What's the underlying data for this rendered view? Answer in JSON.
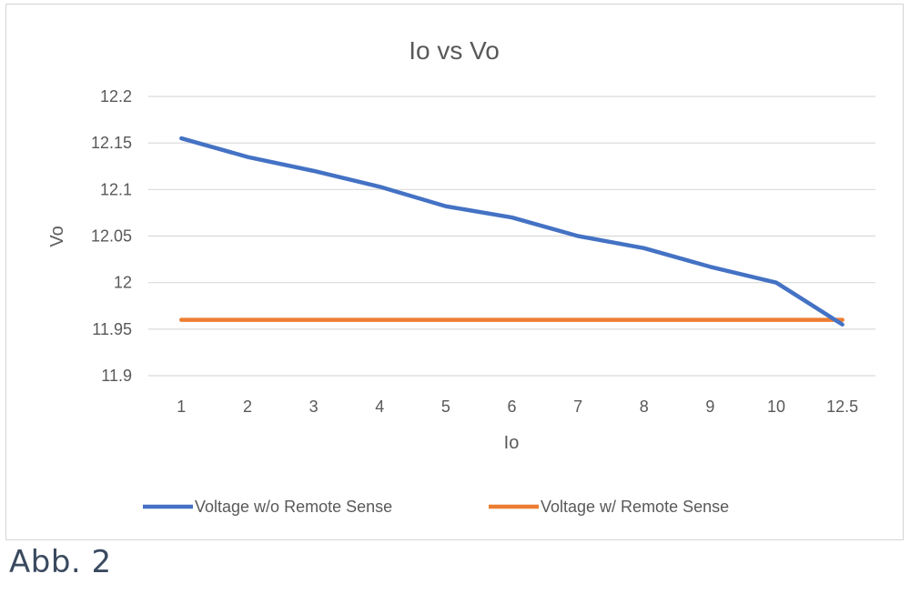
{
  "caption": "Abb. 2",
  "chart_data": {
    "type": "line",
    "title": "Io vs Vo",
    "xlabel": "Io",
    "ylabel": "Vo",
    "categories": [
      "1",
      "2",
      "3",
      "4",
      "5",
      "6",
      "7",
      "8",
      "9",
      "10",
      "12.5"
    ],
    "y_ticks": [
      "12.2",
      "12.15",
      "12.1",
      "12.05",
      "12",
      "11.95",
      "11.9"
    ],
    "ylim": [
      11.9,
      12.2
    ],
    "grid": true,
    "legend_position": "bottom",
    "series": [
      {
        "name": "Voltage w/o Remote Sense",
        "color": "#4472c4",
        "values": [
          12.155,
          12.135,
          12.12,
          12.103,
          12.082,
          12.07,
          12.05,
          12.037,
          12.017,
          12.0,
          11.955
        ]
      },
      {
        "name": "Voltage w/ Remote Sense",
        "color": "#ed7d31",
        "values": [
          11.96,
          11.96,
          11.96,
          11.96,
          11.96,
          11.96,
          11.96,
          11.96,
          11.96,
          11.96,
          11.96
        ]
      }
    ]
  }
}
